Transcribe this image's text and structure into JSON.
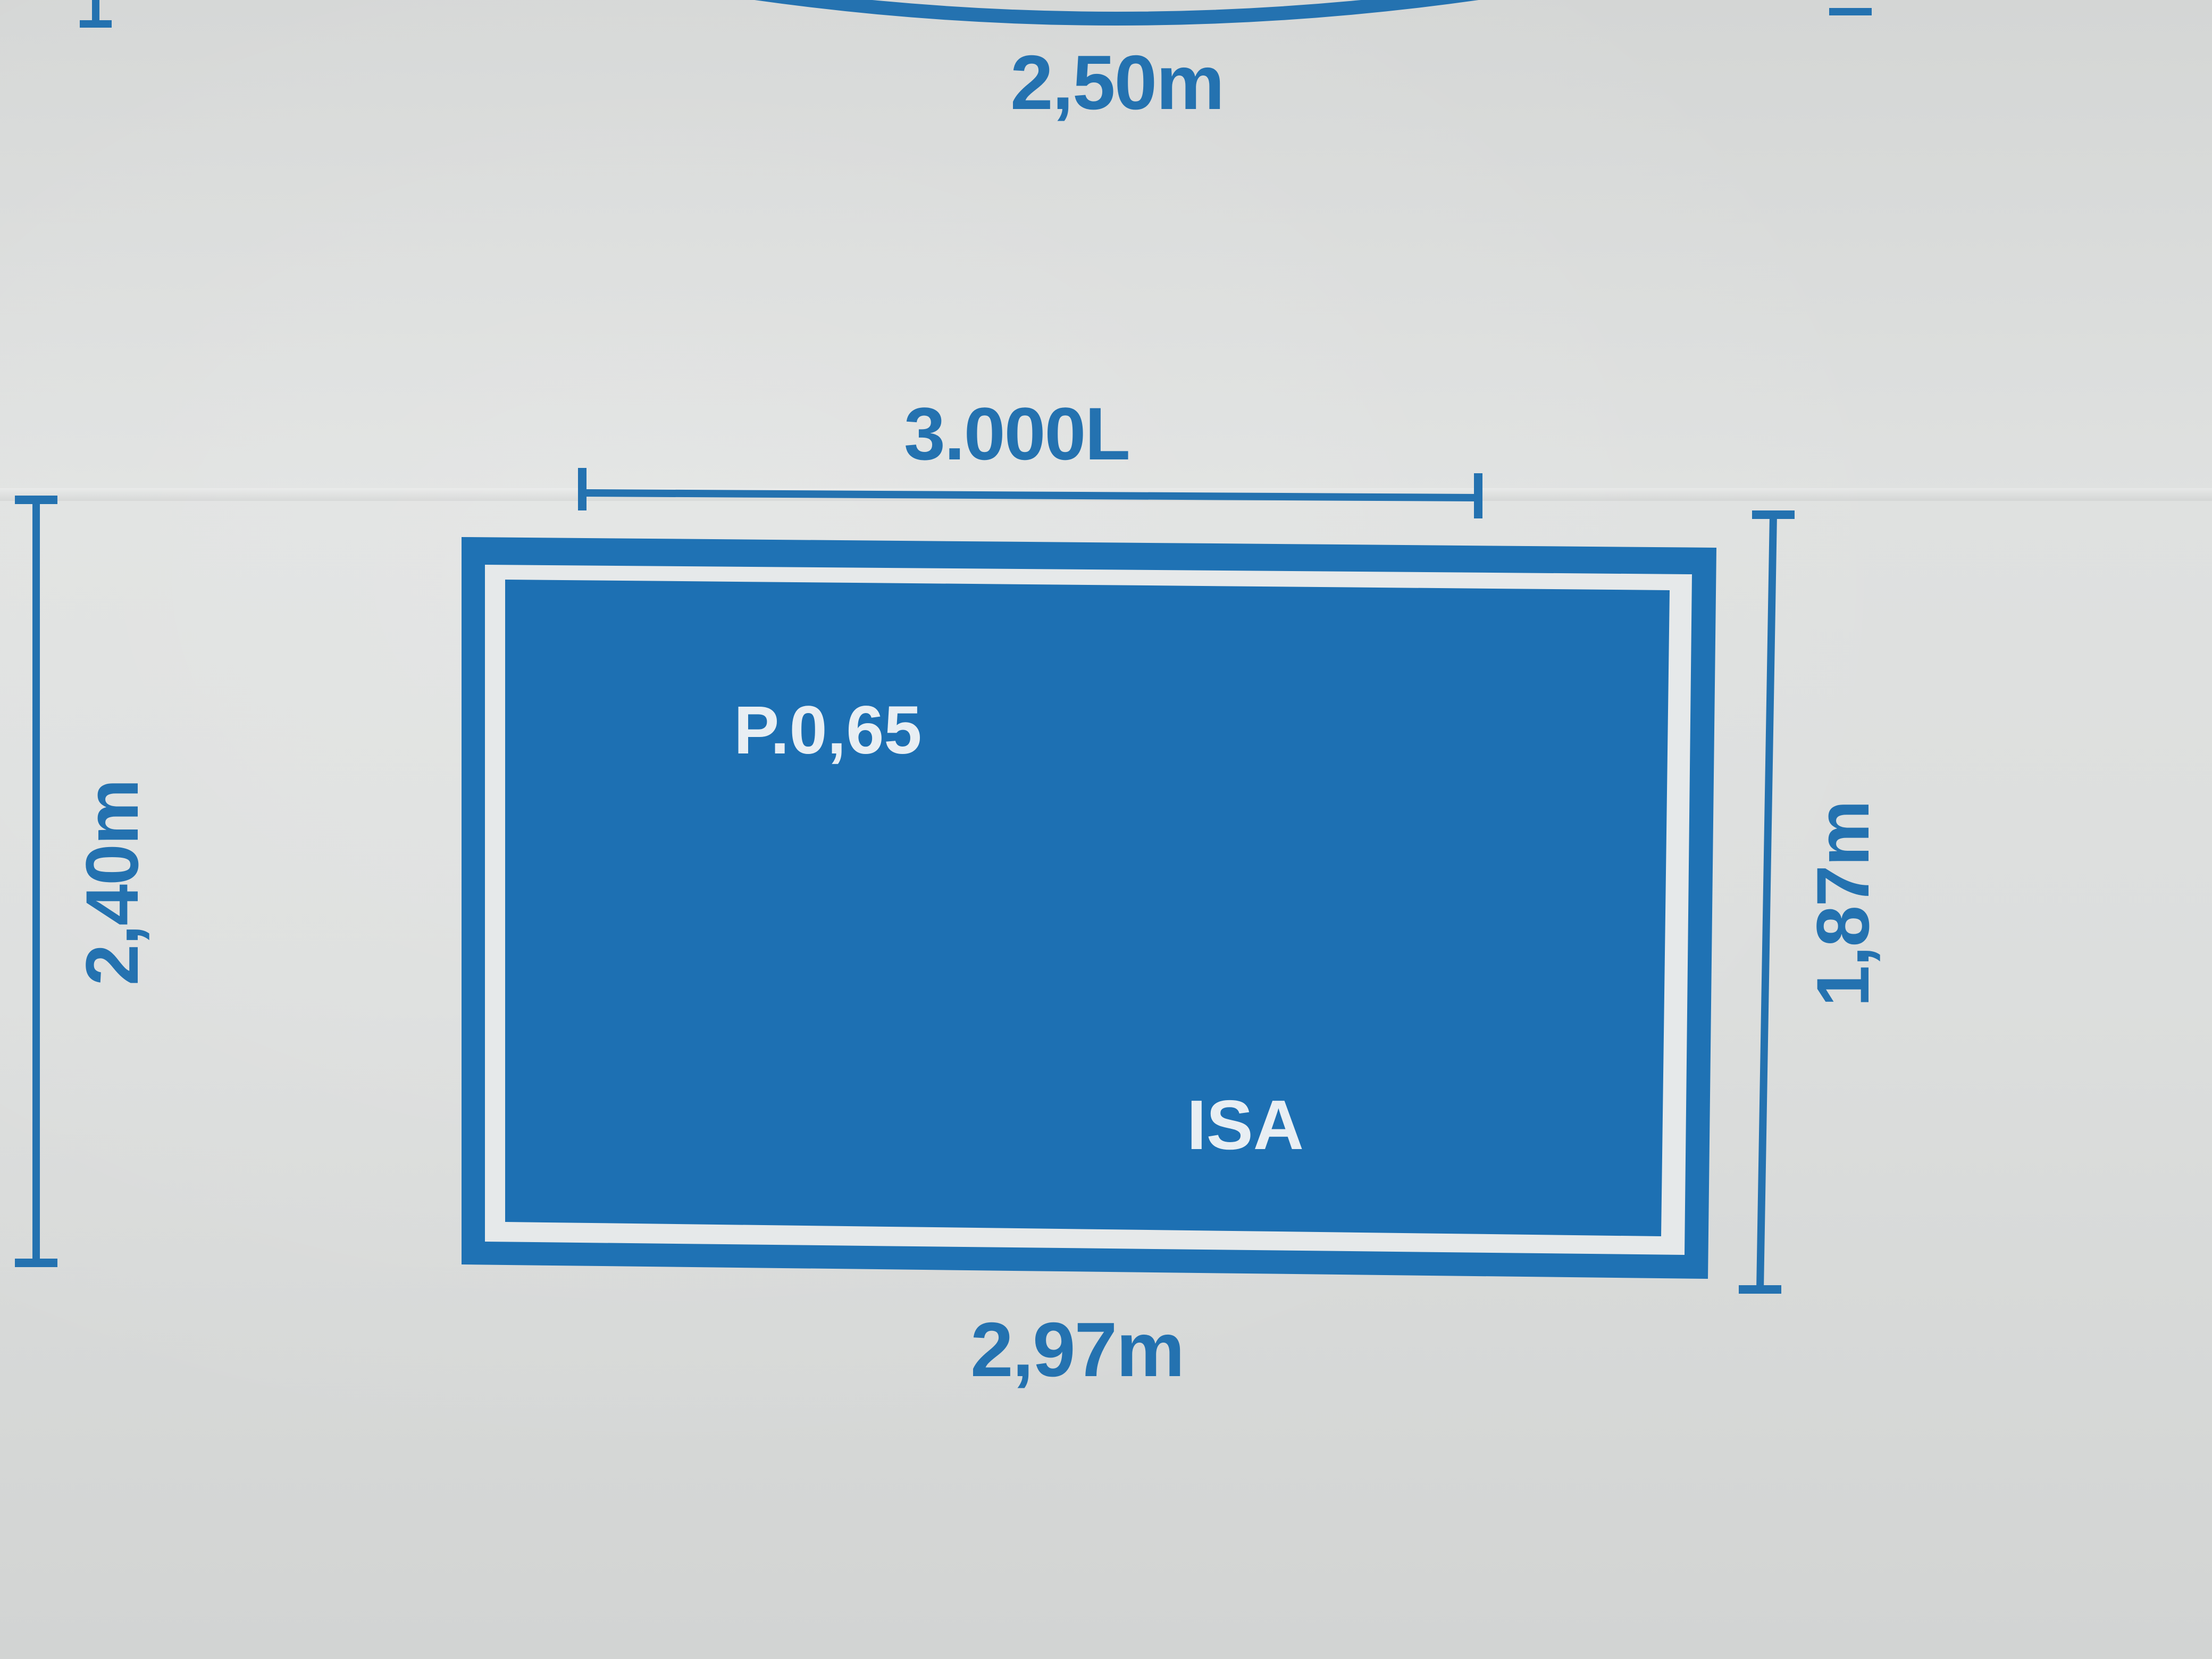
{
  "colors": {
    "paper": "#dcdedd",
    "ink_blue": "#2472b0",
    "pool_fill": "#1f72b4",
    "inner_text": "#e8eef3"
  },
  "top_pool": {
    "width_label": "2,50m"
  },
  "pool": {
    "volume_label": "3.000L",
    "depth_label": "P.0,65",
    "brand_label": "ISA",
    "bottom_width_label": "2,97m",
    "left_height_label": "2,40m",
    "right_height_label": "1,87m"
  }
}
